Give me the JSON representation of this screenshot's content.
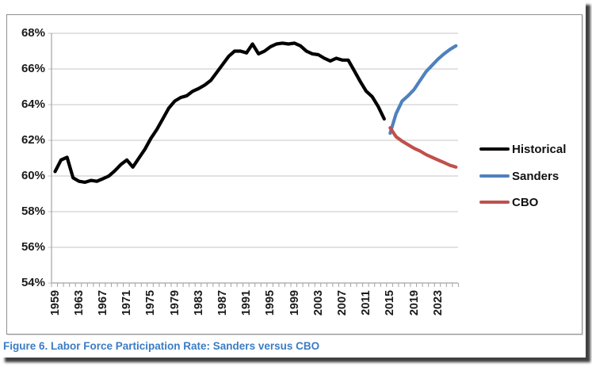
{
  "figure": {
    "caption": "Figure 6. Labor Force Participation Rate: Sanders versus CBO",
    "caption_color": "#3b7cc4"
  },
  "chart_data": {
    "type": "line",
    "title": "",
    "xlabel": "",
    "ylabel": "",
    "ylim": [
      54,
      68
    ],
    "y_tick_values": [
      68,
      66,
      64,
      62,
      60,
      58,
      56,
      54
    ],
    "y_tick_labels": [
      "68%",
      "66%",
      "64%",
      "62%",
      "60%",
      "58%",
      "56%",
      "54%"
    ],
    "x_range": [
      1959,
      2026
    ],
    "x_tick_interval_years": 1,
    "x_tick_labels": [
      "1959",
      "1963",
      "1967",
      "1971",
      "1975",
      "1979",
      "1983",
      "1987",
      "1991",
      "1995",
      "1999",
      "2003",
      "2007",
      "2011",
      "2015",
      "2019",
      "2023"
    ],
    "grid": "horizontal",
    "gridline_color": "#c6c6c6",
    "axis_color": "#a3a3a3",
    "legend_position": "right",
    "series": [
      {
        "name": "Historical",
        "color": "#000000",
        "stroke_width": 4.2,
        "start_year": 1959,
        "values": [
          60.25,
          60.9,
          61.05,
          59.9,
          59.7,
          59.65,
          59.75,
          59.7,
          59.85,
          60.0,
          60.3,
          60.65,
          60.9,
          60.5,
          61.0,
          61.5,
          62.1,
          62.6,
          63.2,
          63.8,
          64.2,
          64.4,
          64.5,
          64.75,
          64.9,
          65.1,
          65.35,
          65.8,
          66.25,
          66.7,
          67.0,
          67.0,
          66.9,
          67.4,
          66.85,
          67.0,
          67.25,
          67.4,
          67.45,
          67.4,
          67.45,
          67.3,
          67.0,
          66.85,
          66.8,
          66.6,
          66.45,
          66.6,
          66.5,
          66.5,
          65.9,
          65.3,
          64.75,
          64.45,
          63.9,
          63.2
        ]
      },
      {
        "name": "Sanders",
        "color": "#4f81bd",
        "stroke_width": 4.2,
        "start_year": 2015,
        "values": [
          62.4,
          63.5,
          64.2,
          64.5,
          64.85,
          65.35,
          65.85,
          66.2,
          66.55,
          66.85,
          67.1,
          67.3
        ]
      },
      {
        "name": "CBO",
        "color": "#c0504d",
        "stroke_width": 4.2,
        "start_year": 2015,
        "values": [
          62.7,
          62.2,
          61.95,
          61.75,
          61.55,
          61.4,
          61.2,
          61.05,
          60.9,
          60.75,
          60.6,
          60.5
        ]
      }
    ]
  }
}
